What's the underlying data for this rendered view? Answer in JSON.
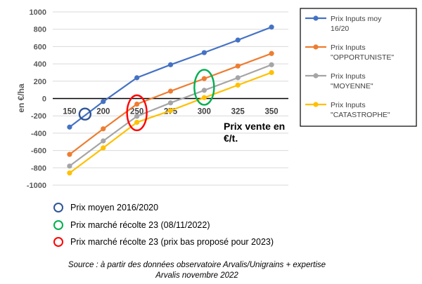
{
  "chart_data": {
    "type": "line",
    "title": "",
    "ylabel": "en €/ha",
    "xlabel_lines": [
      "Prix vente en",
      "€/t."
    ],
    "x": [
      150,
      200,
      250,
      275,
      300,
      325,
      350
    ],
    "categories": [
      "150",
      "200",
      "250",
      "275",
      "300",
      "325",
      "350"
    ],
    "ylim": [
      -1000,
      1000
    ],
    "yticks": [
      "1000",
      "800",
      "600",
      "400",
      "200",
      "0",
      "-200",
      "-400",
      "-600",
      "-800",
      "-1000"
    ],
    "legend_position": "right",
    "series": [
      {
        "name_lines": [
          "Prix Inputs moy",
          "16/20"
        ],
        "color": "#4472C4",
        "values": [
          -330,
          -35,
          240,
          390,
          530,
          675,
          825
        ]
      },
      {
        "name_lines": [
          "Prix Inputs",
          "\"OPPORTUNISTE\""
        ],
        "color": "#ED7D31",
        "values": [
          -645,
          -350,
          -65,
          85,
          230,
          375,
          520
        ]
      },
      {
        "name_lines": [
          "Prix Inputs",
          "\"MOYENNE\""
        ],
        "color": "#A5A5A5",
        "values": [
          -780,
          -490,
          -205,
          -50,
          95,
          240,
          390
        ]
      },
      {
        "name_lines": [
          "Prix Inputs",
          "\"CATASTROPHE\""
        ],
        "color": "#FFC000",
        "values": [
          -860,
          -570,
          -275,
          -140,
          10,
          155,
          300
        ]
      }
    ],
    "annotations": [
      {
        "type": "circle",
        "color": "#2F5597",
        "at_category": "150-200",
        "y": -180
      },
      {
        "type": "ellipse",
        "color": "#00B050",
        "x": 300,
        "y": 130
      },
      {
        "type": "ellipse",
        "color": "#FF0000",
        "x": 250,
        "y": -165
      }
    ]
  },
  "notes": [
    {
      "text": "Prix moyen 2016/2020",
      "color": "#2F5597"
    },
    {
      "text": "Prix marché  récolte 23 (08/11/2022)",
      "color": "#00B050"
    },
    {
      "text": "Prix marché récolte 23 (prix bas proposé pour 2023)",
      "color": "#FF0000"
    }
  ],
  "source_lines": [
    "Source : à partir des données observatoire Arvalis/Unigrains + expertise",
    "Arvalis novembre 2022"
  ]
}
